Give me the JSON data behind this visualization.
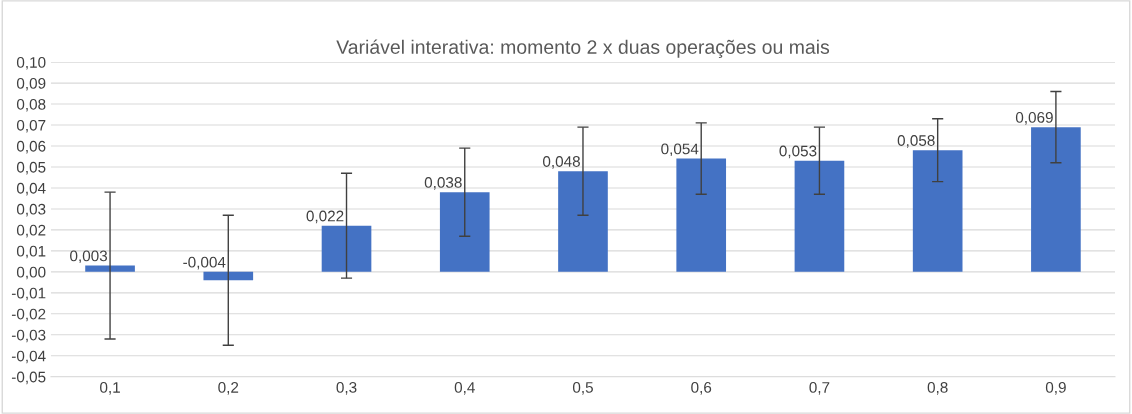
{
  "chart_data": {
    "type": "bar",
    "title": "Variável interativa: momento 2 x duas operações ou mais",
    "categories": [
      "0,1",
      "0,2",
      "0,3",
      "0,4",
      "0,5",
      "0,6",
      "0,7",
      "0,8",
      "0,9"
    ],
    "values": [
      0.003,
      -0.004,
      0.022,
      0.038,
      0.048,
      0.054,
      0.053,
      0.058,
      0.069
    ],
    "errors": [
      0.035,
      0.031,
      0.025,
      0.021,
      0.021,
      0.017,
      0.016,
      0.015,
      0.017
    ],
    "value_labels": [
      "0,003",
      "-0,004",
      "0,022",
      "0,038",
      "0,048",
      "0,054",
      "0,053",
      "0,058",
      "0,069"
    ],
    "color": "#4472c4",
    "ylim": [
      -0.05,
      0.1
    ],
    "yticks": [
      {
        "value": -0.05,
        "label": "-0,05"
      },
      {
        "value": -0.04,
        "label": "-0,04"
      },
      {
        "value": -0.03,
        "label": "-0,03"
      },
      {
        "value": -0.02,
        "label": "-0,02"
      },
      {
        "value": -0.01,
        "label": "-0,01"
      },
      {
        "value": 0.0,
        "label": "0,00"
      },
      {
        "value": 0.01,
        "label": "0,01"
      },
      {
        "value": 0.02,
        "label": "0,02"
      },
      {
        "value": 0.03,
        "label": "0,03"
      },
      {
        "value": 0.04,
        "label": "0,04"
      },
      {
        "value": 0.05,
        "label": "0,05"
      },
      {
        "value": 0.06,
        "label": "0,06"
      },
      {
        "value": 0.07,
        "label": "0,07"
      },
      {
        "value": 0.08,
        "label": "0,08"
      },
      {
        "value": 0.09,
        "label": "0,09"
      },
      {
        "value": 0.1,
        "label": "0,10"
      }
    ],
    "grid": "y",
    "legend": false
  }
}
